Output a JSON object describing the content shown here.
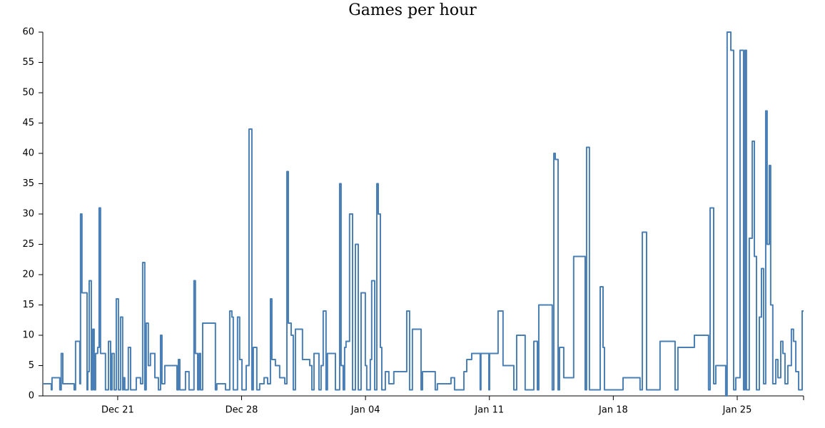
{
  "chart_data": {
    "type": "line",
    "title": "Games per hour",
    "line_shape": "hv",
    "x": [
      -4.23,
      -3.75,
      -3.71,
      -3.27,
      -3.19,
      -3.1,
      -2.46,
      -2.38,
      -2.14,
      -2.1,
      -2.02,
      -1.73,
      -1.69,
      -1.61,
      -1.49,
      -1.41,
      -1.33,
      -1.25,
      -1.13,
      -1.05,
      -0.97,
      -0.69,
      -0.52,
      -0.4,
      -0.32,
      -0.2,
      -0.08,
      0.04,
      0.16,
      0.28,
      0.32,
      0.4,
      0.6,
      0.73,
      1.05,
      1.29,
      1.41,
      1.53,
      1.61,
      1.73,
      1.85,
      2.1,
      2.3,
      2.42,
      2.5,
      2.66,
      3.35,
      3.43,
      3.51,
      3.83,
      4.03,
      4.31,
      4.39,
      4.52,
      4.6,
      4.68,
      4.8,
      5.52,
      5.6,
      6.09,
      6.33,
      6.45,
      6.53,
      6.77,
      6.89,
      7.02,
      7.26,
      7.42,
      7.58,
      7.66,
      7.86,
      8.02,
      8.27,
      8.47,
      8.63,
      8.71,
      8.91,
      9.15,
      9.44,
      9.56,
      9.64,
      9.8,
      9.92,
      10.04,
      10.44,
      10.85,
      10.97,
      11.09,
      11.37,
      11.49,
      11.61,
      11.77,
      11.85,
      12.3,
      12.54,
      12.62,
      12.74,
      12.82,
      12.9,
      13.1,
      13.27,
      13.43,
      13.59,
      13.75,
      13.99,
      14.07,
      14.27,
      14.35,
      14.52,
      14.64,
      14.72,
      14.84,
      14.92,
      15.12,
      15.32,
      15.6,
      16.33,
      16.49,
      16.65,
      17.14,
      17.22,
      17.94,
      18.06,
      18.83,
      19.03,
      19.56,
      19.72,
      20.0,
      20.48,
      20.52,
      20.97,
      21.01,
      21.49,
      21.77,
      22.38,
      22.54,
      23.02,
      23.51,
      23.71,
      23.79,
      24.55,
      24.64,
      24.72,
      24.88,
      24.96,
      25.2,
      25.76,
      26.41,
      26.49,
      26.65,
      27.26,
      27.42,
      27.5,
      27.86,
      28.55,
      29.51,
      29.64,
      29.88,
      30.64,
      31.49,
      31.65,
      32.58,
      33.38,
      33.47,
      33.67,
      33.79,
      34.35,
      34.43,
      34.64,
      34.8,
      34.92,
      35.16,
      35.36,
      35.44,
      35.52,
      35.68,
      35.85,
      35.97,
      36.09,
      36.25,
      36.37,
      36.49,
      36.61,
      36.69,
      36.81,
      36.89,
      37.01,
      37.18,
      37.3,
      37.46,
      37.58,
      37.7,
      37.86,
      38.06,
      38.18,
      38.31,
      38.47,
      38.67,
      38.75
    ],
    "series": [
      {
        "color": "#4a7fb5",
        "values": [
          2,
          1,
          3,
          1,
          7,
          2,
          1,
          9,
          2,
          30,
          17,
          1,
          4,
          19,
          1,
          11,
          1,
          7,
          8,
          31,
          7,
          1,
          9,
          1,
          7,
          1,
          16,
          1,
          13,
          1,
          3,
          1,
          8,
          1,
          3,
          2,
          22,
          1,
          12,
          5,
          7,
          3,
          1,
          10,
          2,
          5,
          1,
          6,
          1,
          4,
          1,
          19,
          7,
          1,
          7,
          1,
          12,
          1,
          2,
          1,
          14,
          13,
          1,
          13,
          6,
          1,
          5,
          44,
          1,
          8,
          1,
          2,
          3,
          2,
          16,
          6,
          5,
          3,
          2,
          37,
          12,
          10,
          1,
          11,
          6,
          5,
          1,
          7,
          1,
          5,
          14,
          1,
          7,
          1,
          35,
          5,
          1,
          8,
          9,
          30,
          1,
          25,
          1,
          17,
          5,
          1,
          6,
          19,
          1,
          35,
          30,
          8,
          1,
          4,
          2,
          4,
          14,
          1,
          11,
          1,
          4,
          1,
          2,
          3,
          1,
          4,
          6,
          7,
          1,
          7,
          1,
          7,
          14,
          5,
          1,
          10,
          1,
          9,
          1,
          15,
          1,
          40,
          39,
          1,
          8,
          3,
          23,
          1,
          41,
          1,
          18,
          8,
          1,
          1,
          3,
          1,
          27,
          1,
          9,
          1,
          8,
          10,
          1,
          31,
          2,
          5,
          0,
          60,
          57,
          1,
          3,
          57,
          1,
          57,
          1,
          26,
          42,
          23,
          1,
          13,
          21,
          2,
          47,
          25,
          38,
          15,
          2,
          6,
          3,
          9,
          7,
          2,
          5,
          11,
          9,
          4,
          1,
          14,
          14
        ]
      }
    ],
    "xlim": [
      -4.23,
      38.75
    ],
    "xticks": [
      {
        "value": 0,
        "label": "Dec 21"
      },
      {
        "value": 7,
        "label": "Dec 28"
      },
      {
        "value": 14,
        "label": "Jan 04"
      },
      {
        "value": 21,
        "label": "Jan 11"
      },
      {
        "value": 28,
        "label": "Jan 18"
      },
      {
        "value": 35,
        "label": "Jan 25"
      }
    ],
    "ylim": [
      0,
      60
    ],
    "yticks": [
      0,
      5,
      10,
      15,
      20,
      25,
      30,
      35,
      40,
      45,
      50,
      55,
      60
    ],
    "grid": false
  }
}
